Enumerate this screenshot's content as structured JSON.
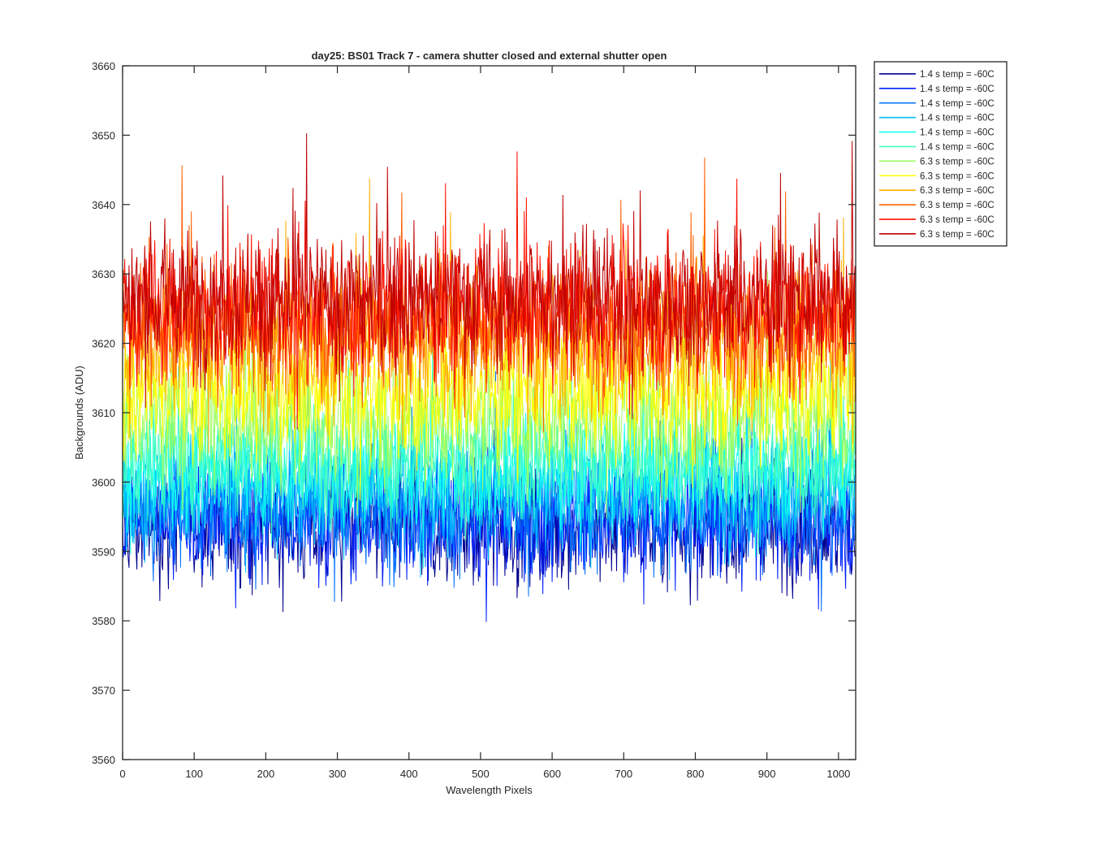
{
  "chart_data": {
    "type": "line",
    "title": "day25: BS01  Track 7 - camera shutter closed and external shutter open",
    "xlabel": "Wavelength Pixels",
    "ylabel": "Backgrounds (ADU)",
    "xlim": [
      0,
      1024
    ],
    "ylim": [
      3560,
      3660
    ],
    "xticks": [
      0,
      100,
      200,
      300,
      400,
      500,
      600,
      700,
      800,
      900,
      1000
    ],
    "yticks": [
      3560,
      3570,
      3580,
      3590,
      3600,
      3610,
      3620,
      3630,
      3640,
      3650,
      3660
    ],
    "grid": false,
    "legend_position": "outside-top-right",
    "n_points": 1024,
    "series": [
      {
        "name": "1.4 s temp = -60C",
        "color": "#00008f",
        "mean": 3593.5,
        "spread": 4.2
      },
      {
        "name": "1.4 s temp = -60C",
        "color": "#0020ff",
        "mean": 3594.5,
        "spread": 4.2
      },
      {
        "name": "1.4 s temp = -60C",
        "color": "#0070ff",
        "mean": 3596.0,
        "spread": 4.2
      },
      {
        "name": "1.4 s temp = -60C",
        "color": "#00bfff",
        "mean": 3598.5,
        "spread": 4.0
      },
      {
        "name": "1.4 s temp = -60C",
        "color": "#10ffef",
        "mean": 3601.5,
        "spread": 4.0
      },
      {
        "name": "1.4 s temp = -60C",
        "color": "#40ffbf",
        "mean": 3603.5,
        "spread": 4.0
      },
      {
        "name": "6.3 s temp = -60C",
        "color": "#9fff60",
        "mean": 3609.0,
        "spread": 4.5
      },
      {
        "name": "6.3 s temp = -60C",
        "color": "#ffff00",
        "mean": 3613.0,
        "spread": 4.5
      },
      {
        "name": "6.3 s temp = -60C",
        "color": "#ffaf00",
        "mean": 3620.0,
        "spread": 5.0
      },
      {
        "name": "6.3 s temp = -60C",
        "color": "#ff6000",
        "mean": 3623.0,
        "spread": 5.0
      },
      {
        "name": "6.3 s temp = -60C",
        "color": "#ff1000",
        "mean": 3625.0,
        "spread": 5.0
      },
      {
        "name": "6.3 s temp = -60C",
        "color": "#bf0000",
        "mean": 3626.5,
        "spread": 5.0
      }
    ]
  }
}
